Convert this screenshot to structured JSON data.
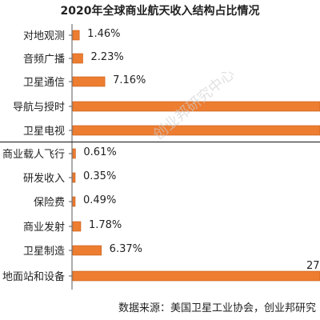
{
  "title": "2020年全球商业航天收入结构占比情况",
  "source": "数据来源：美国卫星工业协会，创业邦研究",
  "watermark": "创业邦研究中心",
  "colors": {
    "bar": "#ED7D31",
    "bar_edge": "#C55A11",
    "axis": "#595959"
  },
  "chart_data": {
    "type": "bar",
    "orientation": "horizontal",
    "categories": [
      "对地观测",
      "音频广播",
      "卫星通信",
      "导航与授时",
      "卫星电视",
      "商业载人飞行",
      "研发收入",
      "保险费",
      "商业发射",
      "卫星制造",
      "地面站和设备"
    ],
    "values": [
      1.46,
      2.23,
      7.16,
      null,
      null,
      0.61,
      0.35,
      0.49,
      1.78,
      6.37,
      null
    ],
    "value_labels": [
      "1.46%",
      "2.23%",
      "7.16%",
      "",
      "",
      "0.61%",
      "0.35%",
      "0.49%",
      "1.78%",
      "6.37%",
      "27"
    ],
    "bar_extends_beyond_view": [
      false,
      false,
      false,
      true,
      true,
      false,
      false,
      false,
      false,
      false,
      true
    ],
    "title": "2020年全球商业航天收入结构占比情况",
    "xlabel": "",
    "ylabel": "",
    "grid": false,
    "legend": "none"
  }
}
